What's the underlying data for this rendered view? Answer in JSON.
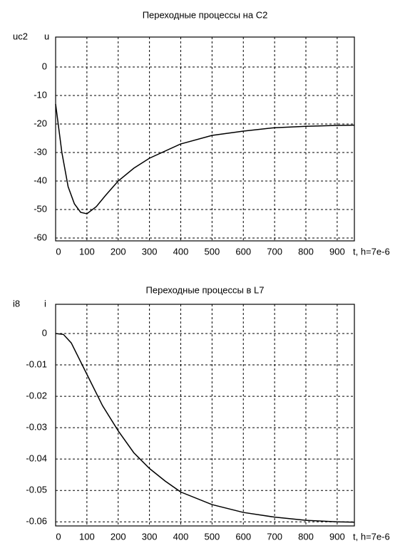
{
  "chart_data": [
    {
      "type": "line",
      "title": "Переходные процессы на C2",
      "ylabel": "uc2",
      "xlabel": "t, h=7e-6",
      "x": [
        0,
        20,
        40,
        60,
        80,
        100,
        130,
        160,
        200,
        250,
        300,
        400,
        500,
        600,
        700,
        800,
        900,
        955
      ],
      "series": [
        {
          "name": "u",
          "color": "#000000",
          "values": [
            -13,
            -30,
            -42,
            -48,
            -51,
            -51.5,
            -49,
            -45,
            -40,
            -35.5,
            -32,
            -27,
            -24,
            -22.5,
            -21.3,
            -20.8,
            -20.5,
            -20.4
          ]
        }
      ],
      "xlim": [
        0,
        955
      ],
      "xticks": [
        0,
        100,
        200,
        300,
        400,
        500,
        600,
        700,
        800,
        900
      ],
      "ylim": [
        -61,
        10.5
      ],
      "yticks": [
        0,
        -10,
        -20,
        -30,
        -40,
        -50,
        -60
      ],
      "grid": true
    },
    {
      "type": "line",
      "title": "Переходные процессы в L7",
      "ylabel": "i8",
      "xlabel": "t, h=7e-6",
      "x": [
        0,
        25,
        50,
        100,
        150,
        200,
        250,
        300,
        350,
        400,
        500,
        600,
        700,
        800,
        900,
        955
      ],
      "series": [
        {
          "name": "i",
          "color": "#000000",
          "values": [
            0,
            -0.0003,
            -0.003,
            -0.013,
            -0.023,
            -0.031,
            -0.038,
            -0.043,
            -0.047,
            -0.0505,
            -0.0545,
            -0.057,
            -0.0585,
            -0.0595,
            -0.06,
            -0.0601
          ]
        }
      ],
      "xlim": [
        0,
        955
      ],
      "xticks": [
        0,
        100,
        200,
        300,
        400,
        500,
        600,
        700,
        800,
        900
      ],
      "ylim": [
        -0.0613,
        0.0093
      ],
      "yticks": [
        0,
        -0.01,
        -0.02,
        -0.03,
        -0.04,
        -0.05,
        -0.06
      ],
      "grid": true
    }
  ]
}
